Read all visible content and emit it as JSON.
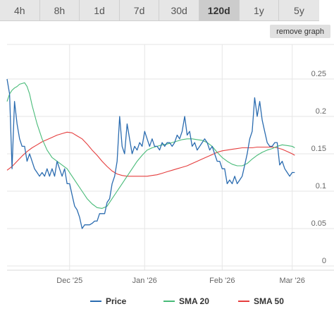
{
  "tabs": [
    {
      "label": "4h",
      "active": false
    },
    {
      "label": "8h",
      "active": false
    },
    {
      "label": "1d",
      "active": false
    },
    {
      "label": "7d",
      "active": false
    },
    {
      "label": "30d",
      "active": false
    },
    {
      "label": "120d",
      "active": true
    },
    {
      "label": "1y",
      "active": false
    },
    {
      "label": "5y",
      "active": false
    }
  ],
  "remove_graph_label": "remove graph",
  "chart_data": {
    "type": "line",
    "title": "",
    "xlabel": "",
    "ylabel": "",
    "ylim": [
      0,
      0.25
    ],
    "yticks": [
      0,
      0.05,
      0.1,
      0.15,
      0.2,
      0.25
    ],
    "ytick_labels": [
      "0",
      "0.05",
      "0.1",
      "0.15",
      "0.2",
      "0.25"
    ],
    "xlim": [
      0,
      120
    ],
    "xticks": [
      {
        "x": 25,
        "label": "Dec '25"
      },
      {
        "x": 55,
        "label": "Jan '26"
      },
      {
        "x": 86,
        "label": "Feb '26"
      },
      {
        "x": 114,
        "label": "Mar '26"
      }
    ],
    "grid": true,
    "legend_position": "bottom",
    "series": [
      {
        "name": "Price",
        "color": "#2b6cb0",
        "points": [
          [
            0,
            0.25
          ],
          [
            1,
            0.23
          ],
          [
            2,
            0.13
          ],
          [
            3,
            0.22
          ],
          [
            4,
            0.19
          ],
          [
            5,
            0.17
          ],
          [
            6,
            0.16
          ],
          [
            7,
            0.16
          ],
          [
            8,
            0.14
          ],
          [
            9,
            0.15
          ],
          [
            10,
            0.14
          ],
          [
            11,
            0.13
          ],
          [
            12,
            0.125
          ],
          [
            13,
            0.12
          ],
          [
            14,
            0.125
          ],
          [
            15,
            0.12
          ],
          [
            16,
            0.13
          ],
          [
            17,
            0.12
          ],
          [
            18,
            0.13
          ],
          [
            19,
            0.12
          ],
          [
            20,
            0.14
          ],
          [
            21,
            0.13
          ],
          [
            22,
            0.12
          ],
          [
            23,
            0.13
          ],
          [
            24,
            0.11
          ],
          [
            25,
            0.11
          ],
          [
            26,
            0.095
          ],
          [
            27,
            0.08
          ],
          [
            28,
            0.075
          ],
          [
            29,
            0.065
          ],
          [
            30,
            0.05
          ],
          [
            31,
            0.055
          ],
          [
            32,
            0.055
          ],
          [
            33,
            0.055
          ],
          [
            34,
            0.057
          ],
          [
            35,
            0.06
          ],
          [
            36,
            0.06
          ],
          [
            37,
            0.07
          ],
          [
            38,
            0.07
          ],
          [
            39,
            0.07
          ],
          [
            40,
            0.085
          ],
          [
            41,
            0.09
          ],
          [
            42,
            0.11
          ],
          [
            43,
            0.12
          ],
          [
            44,
            0.14
          ],
          [
            45,
            0.2
          ],
          [
            46,
            0.16
          ],
          [
            47,
            0.15
          ],
          [
            48,
            0.19
          ],
          [
            49,
            0.17
          ],
          [
            50,
            0.15
          ],
          [
            51,
            0.16
          ],
          [
            52,
            0.155
          ],
          [
            53,
            0.165
          ],
          [
            54,
            0.16
          ],
          [
            55,
            0.18
          ],
          [
            56,
            0.17
          ],
          [
            57,
            0.16
          ],
          [
            58,
            0.17
          ],
          [
            59,
            0.16
          ],
          [
            60,
            0.16
          ],
          [
            61,
            0.155
          ],
          [
            62,
            0.165
          ],
          [
            63,
            0.16
          ],
          [
            64,
            0.165
          ],
          [
            65,
            0.165
          ],
          [
            66,
            0.16
          ],
          [
            67,
            0.165
          ],
          [
            68,
            0.175
          ],
          [
            69,
            0.17
          ],
          [
            70,
            0.18
          ],
          [
            71,
            0.2
          ],
          [
            72,
            0.175
          ],
          [
            73,
            0.18
          ],
          [
            74,
            0.16
          ],
          [
            75,
            0.165
          ],
          [
            76,
            0.155
          ],
          [
            77,
            0.16
          ],
          [
            78,
            0.165
          ],
          [
            79,
            0.17
          ],
          [
            80,
            0.165
          ],
          [
            81,
            0.155
          ],
          [
            82,
            0.16
          ],
          [
            83,
            0.15
          ],
          [
            84,
            0.14
          ],
          [
            85,
            0.14
          ],
          [
            86,
            0.13
          ],
          [
            87,
            0.13
          ],
          [
            88,
            0.11
          ],
          [
            89,
            0.115
          ],
          [
            90,
            0.11
          ],
          [
            91,
            0.12
          ],
          [
            92,
            0.11
          ],
          [
            93,
            0.115
          ],
          [
            94,
            0.12
          ],
          [
            95,
            0.135
          ],
          [
            96,
            0.15
          ],
          [
            97,
            0.17
          ],
          [
            98,
            0.18
          ],
          [
            99,
            0.225
          ],
          [
            100,
            0.2
          ],
          [
            101,
            0.22
          ],
          [
            102,
            0.195
          ],
          [
            103,
            0.18
          ],
          [
            104,
            0.165
          ],
          [
            105,
            0.16
          ],
          [
            106,
            0.16
          ],
          [
            107,
            0.165
          ],
          [
            108,
            0.165
          ],
          [
            109,
            0.135
          ],
          [
            110,
            0.14
          ],
          [
            111,
            0.13
          ],
          [
            112,
            0.125
          ],
          [
            113,
            0.12
          ],
          [
            114,
            0.125
          ],
          [
            115,
            0.125
          ]
        ]
      },
      {
        "name": "SMA 20",
        "color": "#48bb78",
        "points": [
          [
            0,
            0.22
          ],
          [
            1,
            0.23
          ],
          [
            2,
            0.235
          ],
          [
            3,
            0.238
          ],
          [
            4,
            0.24
          ],
          [
            5,
            0.243
          ],
          [
            6,
            0.244
          ],
          [
            7,
            0.245
          ],
          [
            8,
            0.24
          ],
          [
            9,
            0.23
          ],
          [
            10,
            0.215
          ],
          [
            12,
            0.19
          ],
          [
            14,
            0.17
          ],
          [
            16,
            0.155
          ],
          [
            18,
            0.145
          ],
          [
            20,
            0.14
          ],
          [
            22,
            0.135
          ],
          [
            24,
            0.13
          ],
          [
            26,
            0.12
          ],
          [
            28,
            0.11
          ],
          [
            30,
            0.1
          ],
          [
            32,
            0.09
          ],
          [
            34,
            0.083
          ],
          [
            36,
            0.078
          ],
          [
            38,
            0.077
          ],
          [
            40,
            0.08
          ],
          [
            42,
            0.09
          ],
          [
            44,
            0.1
          ],
          [
            46,
            0.11
          ],
          [
            48,
            0.12
          ],
          [
            50,
            0.13
          ],
          [
            52,
            0.14
          ],
          [
            54,
            0.148
          ],
          [
            56,
            0.155
          ],
          [
            58,
            0.158
          ],
          [
            60,
            0.16
          ],
          [
            62,
            0.162
          ],
          [
            64,
            0.163
          ],
          [
            66,
            0.165
          ],
          [
            68,
            0.167
          ],
          [
            70,
            0.169
          ],
          [
            72,
            0.17
          ],
          [
            74,
            0.17
          ],
          [
            76,
            0.169
          ],
          [
            78,
            0.168
          ],
          [
            80,
            0.165
          ],
          [
            82,
            0.16
          ],
          [
            84,
            0.152
          ],
          [
            86,
            0.145
          ],
          [
            88,
            0.14
          ],
          [
            90,
            0.136
          ],
          [
            92,
            0.134
          ],
          [
            94,
            0.134
          ],
          [
            96,
            0.137
          ],
          [
            98,
            0.143
          ],
          [
            100,
            0.148
          ],
          [
            102,
            0.152
          ],
          [
            104,
            0.155
          ],
          [
            106,
            0.157
          ],
          [
            108,
            0.16
          ],
          [
            110,
            0.162
          ],
          [
            112,
            0.161
          ],
          [
            114,
            0.16
          ],
          [
            115,
            0.158
          ]
        ]
      },
      {
        "name": "SMA 50",
        "color": "#e53e3e",
        "points": [
          [
            0,
            0.128
          ],
          [
            2,
            0.133
          ],
          [
            4,
            0.14
          ],
          [
            6,
            0.147
          ],
          [
            8,
            0.153
          ],
          [
            10,
            0.158
          ],
          [
            12,
            0.162
          ],
          [
            14,
            0.166
          ],
          [
            16,
            0.169
          ],
          [
            18,
            0.172
          ],
          [
            20,
            0.175
          ],
          [
            22,
            0.177
          ],
          [
            24,
            0.179
          ],
          [
            26,
            0.178
          ],
          [
            28,
            0.174
          ],
          [
            30,
            0.17
          ],
          [
            32,
            0.163
          ],
          [
            34,
            0.155
          ],
          [
            36,
            0.148
          ],
          [
            38,
            0.14
          ],
          [
            40,
            0.133
          ],
          [
            42,
            0.127
          ],
          [
            44,
            0.123
          ],
          [
            46,
            0.121
          ],
          [
            48,
            0.12
          ],
          [
            50,
            0.12
          ],
          [
            52,
            0.12
          ],
          [
            54,
            0.12
          ],
          [
            56,
            0.12
          ],
          [
            58,
            0.121
          ],
          [
            60,
            0.122
          ],
          [
            62,
            0.124
          ],
          [
            64,
            0.126
          ],
          [
            66,
            0.128
          ],
          [
            68,
            0.13
          ],
          [
            70,
            0.132
          ],
          [
            72,
            0.134
          ],
          [
            74,
            0.137
          ],
          [
            76,
            0.14
          ],
          [
            78,
            0.143
          ],
          [
            80,
            0.146
          ],
          [
            82,
            0.149
          ],
          [
            84,
            0.152
          ],
          [
            86,
            0.154
          ],
          [
            88,
            0.155
          ],
          [
            90,
            0.156
          ],
          [
            92,
            0.157
          ],
          [
            94,
            0.158
          ],
          [
            96,
            0.158
          ],
          [
            98,
            0.158
          ],
          [
            100,
            0.159
          ],
          [
            102,
            0.159
          ],
          [
            104,
            0.159
          ],
          [
            106,
            0.159
          ],
          [
            108,
            0.158
          ],
          [
            110,
            0.156
          ],
          [
            112,
            0.153
          ],
          [
            114,
            0.15
          ],
          [
            115,
            0.148
          ]
        ]
      }
    ]
  }
}
